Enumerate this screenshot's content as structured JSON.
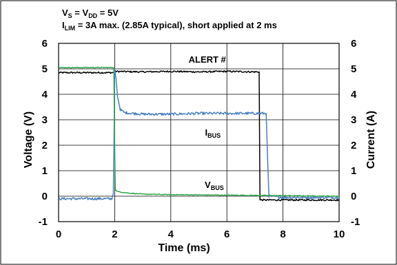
{
  "chart_data": {
    "type": "line",
    "notes": [
      {
        "main": "V",
        "sub": "S",
        "tail": " = V",
        "sub2": "DD",
        "tail2": " = 5V"
      },
      {
        "main": "I",
        "sub": "LIM",
        "tail": " = 3A max. (2.85A typical), short applied at 2 ms"
      }
    ],
    "xlabel": "Time (ms)",
    "ylabel_left": "Voltage (V)",
    "ylabel_right": "Current (A)",
    "xlim": [
      0,
      10
    ],
    "ylim": [
      -1,
      6
    ],
    "x_ticks": [
      "0",
      "2",
      "4",
      "6",
      "8",
      "10"
    ],
    "y_ticks_left": [
      "-1",
      "0",
      "1",
      "2",
      "3",
      "4",
      "5",
      "6"
    ],
    "y_ticks_right": [
      "-1",
      "0",
      "1",
      "2",
      "3",
      "4",
      "5",
      "6"
    ],
    "grid": true,
    "annotations": [
      {
        "main": "ALERT #",
        "sub": "",
        "x": 5.3,
        "y": 5.25
      },
      {
        "main": "I",
        "sub": "BUS",
        "x": 5.5,
        "y": 2.38
      },
      {
        "main": "V",
        "sub": "BUS",
        "x": 5.55,
        "y": 0.33
      }
    ],
    "series": [
      {
        "name": "ALERT #",
        "color": "#000000",
        "points": [
          [
            0,
            4.85
          ],
          [
            1.95,
            4.85
          ],
          [
            2.0,
            4.9
          ],
          [
            3.0,
            4.88
          ],
          [
            4.0,
            4.9
          ],
          [
            5.0,
            4.88
          ],
          [
            6.0,
            4.9
          ],
          [
            7.0,
            4.88
          ],
          [
            7.15,
            4.88
          ],
          [
            7.18,
            -0.15
          ],
          [
            8.0,
            -0.15
          ],
          [
            9.0,
            -0.15
          ],
          [
            10.0,
            -0.15
          ]
        ],
        "noise": 0.03
      },
      {
        "name": "I_BUS",
        "color": "#4a7fc1",
        "points": [
          [
            0,
            -0.1
          ],
          [
            1.9,
            -0.1
          ],
          [
            1.95,
            0.1
          ],
          [
            1.98,
            2.5
          ],
          [
            2.0,
            5.0
          ],
          [
            2.05,
            4.6
          ],
          [
            2.1,
            3.9
          ],
          [
            2.2,
            3.4
          ],
          [
            2.35,
            3.28
          ],
          [
            3.0,
            3.22
          ],
          [
            4.0,
            3.22
          ],
          [
            5.0,
            3.25
          ],
          [
            6.0,
            3.25
          ],
          [
            7.0,
            3.25
          ],
          [
            7.4,
            3.25
          ],
          [
            7.45,
            1.5
          ],
          [
            7.5,
            0.0
          ],
          [
            8.0,
            -0.05
          ],
          [
            9.0,
            -0.05
          ],
          [
            10.0,
            -0.05
          ]
        ],
        "noise": 0.05
      },
      {
        "name": "V_BUS",
        "color": "#2fa84f",
        "points": [
          [
            0,
            5.05
          ],
          [
            1.97,
            5.05
          ],
          [
            2.0,
            2.0
          ],
          [
            2.02,
            0.25
          ],
          [
            2.1,
            0.18
          ],
          [
            2.5,
            0.12
          ],
          [
            3.0,
            0.08
          ],
          [
            4.0,
            0.06
          ],
          [
            5.0,
            0.05
          ],
          [
            6.0,
            0.04
          ],
          [
            7.0,
            0.03
          ],
          [
            8.0,
            0.02
          ],
          [
            9.0,
            0.01
          ],
          [
            10.0,
            0.0
          ]
        ],
        "noise": 0.015
      }
    ]
  }
}
